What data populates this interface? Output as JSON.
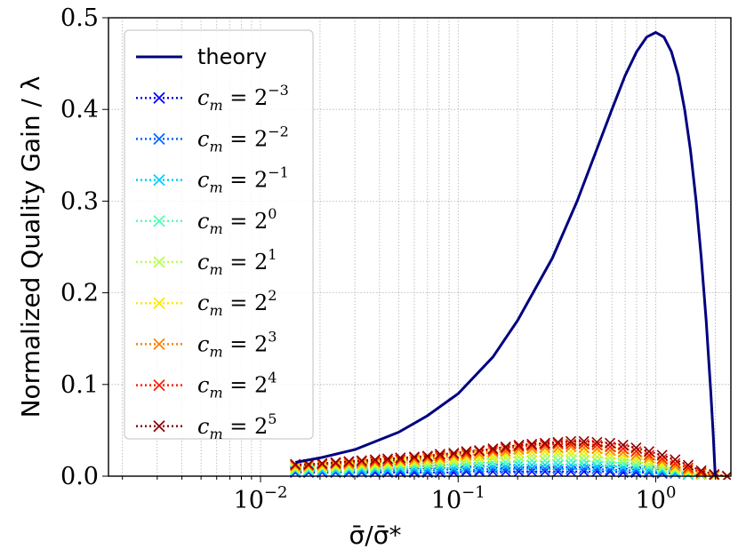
{
  "chart_data": {
    "type": "line",
    "xscale": "log",
    "xlim": [
      0.0017,
      2.4
    ],
    "ylim": [
      0.0,
      0.5
    ],
    "xlabel": "σ̄/σ̄*",
    "ylabel": "Normalized Quality Gain / λ",
    "grid": true,
    "legend_position": "top-left",
    "x_ticks": [
      {
        "value": 0.01,
        "label": "10",
        "exp": "−2"
      },
      {
        "value": 0.1,
        "label": "10",
        "exp": "−1"
      },
      {
        "value": 1,
        "label": "10",
        "exp": "0"
      }
    ],
    "y_ticks": [
      {
        "value": 0.0,
        "label": "0.0"
      },
      {
        "value": 0.1,
        "label": "0.1"
      },
      {
        "value": 0.2,
        "label": "0.2"
      },
      {
        "value": 0.3,
        "label": "0.3"
      },
      {
        "value": 0.4,
        "label": "0.4"
      },
      {
        "value": 0.5,
        "label": "0.5"
      }
    ],
    "theory": {
      "name": "theory",
      "color": "#000080",
      "x": [
        0.015,
        0.02,
        0.03,
        0.05,
        0.07,
        0.1,
        0.15,
        0.2,
        0.3,
        0.4,
        0.5,
        0.6,
        0.7,
        0.8,
        0.9,
        1.0,
        1.1,
        1.2,
        1.3,
        1.4,
        1.5,
        1.6,
        1.7,
        1.8,
        1.9,
        1.95,
        2.0
      ],
      "y": [
        0.015,
        0.02,
        0.029,
        0.048,
        0.066,
        0.09,
        0.13,
        0.17,
        0.238,
        0.3,
        0.355,
        0.4,
        0.437,
        0.463,
        0.479,
        0.484,
        0.479,
        0.463,
        0.437,
        0.4,
        0.355,
        0.3,
        0.238,
        0.17,
        0.09,
        0.048,
        0.0
      ]
    },
    "series_x": [
      0.015,
      0.0175,
      0.0205,
      0.024,
      0.028,
      0.0325,
      0.038,
      0.044,
      0.051,
      0.06,
      0.07,
      0.081,
      0.095,
      0.11,
      0.128,
      0.15,
      0.174,
      0.203,
      0.236,
      0.275,
      0.32,
      0.372,
      0.433,
      0.504,
      0.587,
      0.683,
      0.795,
      0.925,
      1.077,
      1.253,
      1.459,
      1.698,
      1.976,
      2.3
    ],
    "series": [
      {
        "name_base": "c",
        "name_sub": "m",
        "name_exp": "−3",
        "color": "#0000ff",
        "values": [
          0.004,
          0.004,
          0.004,
          0.004,
          0.004,
          0.004,
          0.004,
          0.004,
          0.004,
          0.004,
          0.004,
          0.004,
          0.004,
          0.005,
          0.005,
          0.005,
          0.005,
          0.005,
          0.005,
          0.005,
          0.005,
          0.005,
          0.005,
          0.005,
          0.005,
          0.004,
          0.004,
          0.004,
          0.003,
          0.003,
          0.002,
          0.001,
          0.0,
          0.0
        ]
      },
      {
        "name_base": "c",
        "name_sub": "m",
        "name_exp": "−2",
        "color": "#0066ff",
        "values": [
          0.005,
          0.005,
          0.005,
          0.005,
          0.005,
          0.005,
          0.006,
          0.006,
          0.006,
          0.006,
          0.006,
          0.007,
          0.007,
          0.007,
          0.007,
          0.008,
          0.008,
          0.008,
          0.008,
          0.008,
          0.008,
          0.008,
          0.008,
          0.008,
          0.007,
          0.007,
          0.006,
          0.005,
          0.004,
          0.003,
          0.002,
          0.001,
          0.0,
          0.0
        ]
      },
      {
        "name_base": "c",
        "name_sub": "m",
        "name_exp": "−1",
        "color": "#00ccff",
        "values": [
          0.006,
          0.006,
          0.006,
          0.006,
          0.007,
          0.007,
          0.007,
          0.007,
          0.008,
          0.008,
          0.008,
          0.009,
          0.009,
          0.01,
          0.01,
          0.011,
          0.011,
          0.012,
          0.012,
          0.012,
          0.012,
          0.012,
          0.012,
          0.011,
          0.011,
          0.01,
          0.009,
          0.007,
          0.006,
          0.004,
          0.002,
          0.001,
          0.0,
          0.0
        ]
      },
      {
        "name_base": "c",
        "name_sub": "m",
        "name_exp": "0",
        "color": "#4dffb3",
        "values": [
          0.007,
          0.007,
          0.008,
          0.008,
          0.008,
          0.009,
          0.009,
          0.01,
          0.01,
          0.011,
          0.011,
          0.012,
          0.013,
          0.013,
          0.014,
          0.015,
          0.015,
          0.016,
          0.017,
          0.017,
          0.017,
          0.017,
          0.017,
          0.016,
          0.015,
          0.014,
          0.012,
          0.01,
          0.008,
          0.006,
          0.003,
          0.001,
          0.0,
          0.0
        ]
      },
      {
        "name_base": "c",
        "name_sub": "m",
        "name_exp": "1",
        "color": "#b3ff4d",
        "values": [
          0.008,
          0.009,
          0.009,
          0.01,
          0.01,
          0.011,
          0.011,
          0.012,
          0.013,
          0.014,
          0.014,
          0.015,
          0.016,
          0.017,
          0.018,
          0.019,
          0.02,
          0.021,
          0.022,
          0.022,
          0.023,
          0.023,
          0.022,
          0.021,
          0.02,
          0.018,
          0.016,
          0.013,
          0.01,
          0.007,
          0.004,
          0.002,
          0.0,
          0.0
        ]
      },
      {
        "name_base": "c",
        "name_sub": "m",
        "name_exp": "2",
        "color": "#ffe600",
        "values": [
          0.009,
          0.01,
          0.01,
          0.011,
          0.012,
          0.012,
          0.013,
          0.014,
          0.015,
          0.016,
          0.017,
          0.018,
          0.019,
          0.02,
          0.021,
          0.022,
          0.024,
          0.025,
          0.026,
          0.027,
          0.027,
          0.027,
          0.027,
          0.026,
          0.024,
          0.022,
          0.02,
          0.017,
          0.013,
          0.009,
          0.005,
          0.002,
          0.0,
          0.0
        ]
      },
      {
        "name_base": "c",
        "name_sub": "m",
        "name_exp": "3",
        "color": "#ff8000",
        "values": [
          0.011,
          0.011,
          0.012,
          0.013,
          0.013,
          0.014,
          0.015,
          0.016,
          0.017,
          0.018,
          0.019,
          0.02,
          0.022,
          0.023,
          0.024,
          0.026,
          0.027,
          0.029,
          0.03,
          0.031,
          0.031,
          0.032,
          0.031,
          0.03,
          0.028,
          0.026,
          0.023,
          0.02,
          0.016,
          0.011,
          0.007,
          0.003,
          0.001,
          0.0
        ]
      },
      {
        "name_base": "c",
        "name_sub": "m",
        "name_exp": "4",
        "color": "#ff1a00",
        "values": [
          0.012,
          0.012,
          0.013,
          0.014,
          0.015,
          0.016,
          0.016,
          0.017,
          0.018,
          0.02,
          0.021,
          0.022,
          0.024,
          0.025,
          0.027,
          0.028,
          0.03,
          0.032,
          0.033,
          0.034,
          0.035,
          0.035,
          0.035,
          0.034,
          0.032,
          0.03,
          0.027,
          0.023,
          0.019,
          0.014,
          0.009,
          0.004,
          0.001,
          0.0
        ]
      },
      {
        "name_base": "c",
        "name_sub": "m",
        "name_exp": "5",
        "color": "#8b0000",
        "values": [
          0.013,
          0.013,
          0.014,
          0.015,
          0.016,
          0.017,
          0.018,
          0.019,
          0.02,
          0.021,
          0.022,
          0.024,
          0.025,
          0.027,
          0.028,
          0.03,
          0.032,
          0.034,
          0.035,
          0.036,
          0.037,
          0.038,
          0.038,
          0.037,
          0.036,
          0.034,
          0.031,
          0.027,
          0.023,
          0.018,
          0.012,
          0.006,
          0.002,
          0.0
        ]
      }
    ]
  }
}
